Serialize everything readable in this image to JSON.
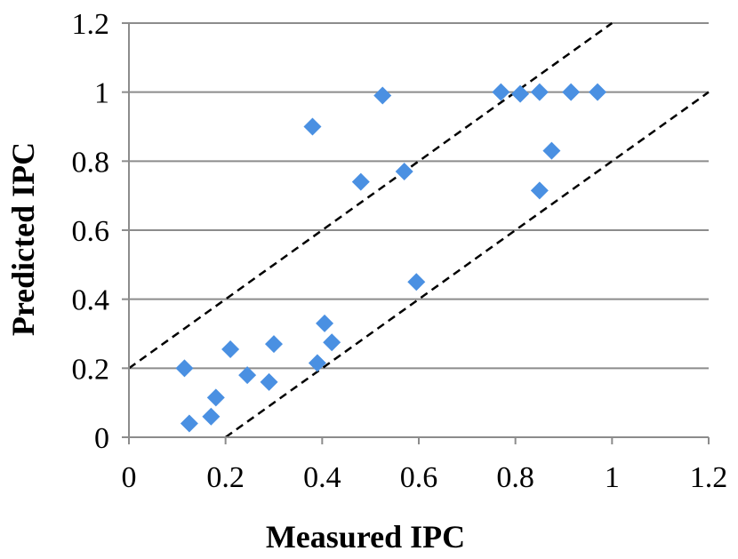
{
  "chart_data": {
    "type": "scatter",
    "title": "",
    "xlabel": "Measured IPC",
    "ylabel": "Predicted IPC",
    "xlim": [
      0,
      1.2
    ],
    "ylim": [
      0,
      1.2
    ],
    "x_ticks": [
      0,
      0.2,
      0.4,
      0.6,
      0.8,
      1,
      1.2
    ],
    "y_ticks": [
      0,
      0.2,
      0.4,
      0.6,
      0.8,
      1,
      1.2
    ],
    "x_tick_labels": [
      "0",
      "0.2",
      "0.4",
      "0.6",
      "0.8",
      "1",
      "1.2"
    ],
    "y_tick_labels": [
      "0",
      "0.2",
      "0.4",
      "0.6",
      "0.8",
      "1",
      "1.2"
    ],
    "grid": "horizontal",
    "colors": {
      "marker": "#4a90e2",
      "grid": "#8c8c8c",
      "axis": "#8c8c8c",
      "bound_line": "#000000"
    },
    "series": [
      {
        "name": "IPC",
        "marker": "diamond",
        "points": [
          {
            "x": 0.115,
            "y": 0.2
          },
          {
            "x": 0.125,
            "y": 0.04
          },
          {
            "x": 0.17,
            "y": 0.06
          },
          {
            "x": 0.18,
            "y": 0.115
          },
          {
            "x": 0.21,
            "y": 0.255
          },
          {
            "x": 0.245,
            "y": 0.18
          },
          {
            "x": 0.29,
            "y": 0.16
          },
          {
            "x": 0.3,
            "y": 0.27
          },
          {
            "x": 0.38,
            "y": 0.9
          },
          {
            "x": 0.39,
            "y": 0.215
          },
          {
            "x": 0.405,
            "y": 0.33
          },
          {
            "x": 0.42,
            "y": 0.275
          },
          {
            "x": 0.48,
            "y": 0.74
          },
          {
            "x": 0.525,
            "y": 0.99
          },
          {
            "x": 0.57,
            "y": 0.77
          },
          {
            "x": 0.595,
            "y": 0.45
          },
          {
            "x": 0.77,
            "y": 1.0
          },
          {
            "x": 0.81,
            "y": 0.995
          },
          {
            "x": 0.85,
            "y": 1.0
          },
          {
            "x": 0.85,
            "y": 0.715
          },
          {
            "x": 0.875,
            "y": 0.83
          },
          {
            "x": 0.915,
            "y": 1.0
          },
          {
            "x": 0.97,
            "y": 1.0
          }
        ]
      }
    ],
    "reference_lines": [
      {
        "name": "upper-bound",
        "style": "dashed",
        "x": [
          0,
          1.0
        ],
        "y": [
          0.2,
          1.2
        ]
      },
      {
        "name": "lower-bound",
        "style": "dashed",
        "x": [
          0.2,
          1.2
        ],
        "y": [
          0,
          1.0
        ]
      }
    ]
  }
}
